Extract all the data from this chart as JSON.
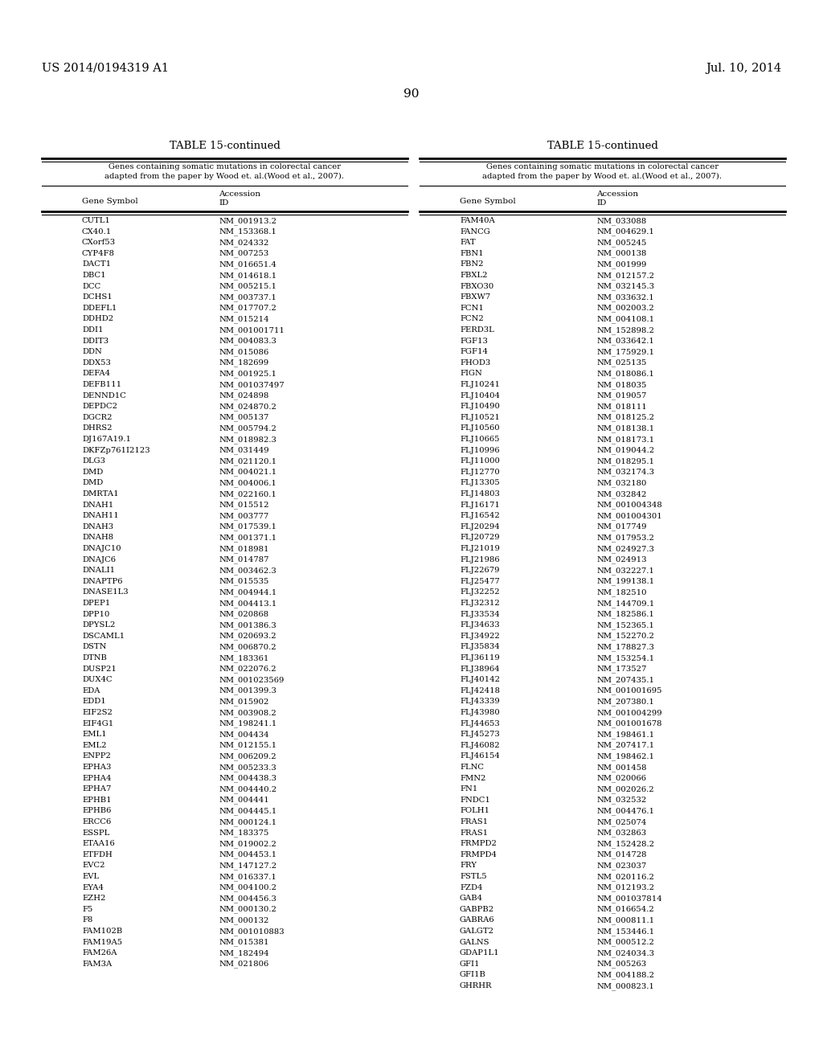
{
  "header_left": "US 2014/0194319 A1",
  "header_right": "Jul. 10, 2014",
  "page_number": "90",
  "table_title": "TABLE 15-continued",
  "table_subtitle": "Genes containing somatic mutations in colorectal cancer\nadapted from the paper by Wood et. al.(Wood et al., 2007).",
  "left_data": [
    [
      "CUTL1",
      "NM_001913.2"
    ],
    [
      "CX40.1",
      "NM_153368.1"
    ],
    [
      "CXorf53",
      "NM_024332"
    ],
    [
      "CYP4F8",
      "NM_007253"
    ],
    [
      "DACT1",
      "NM_016651.4"
    ],
    [
      "DBC1",
      "NM_014618.1"
    ],
    [
      "DCC",
      "NM_005215.1"
    ],
    [
      "DCHS1",
      "NM_003737.1"
    ],
    [
      "DDEFL1",
      "NM_017707.2"
    ],
    [
      "DDHD2",
      "NM_015214"
    ],
    [
      "DDI1",
      "NM_001001711"
    ],
    [
      "DDIT3",
      "NM_004083.3"
    ],
    [
      "DDN",
      "NM_015086"
    ],
    [
      "DDX53",
      "NM_182699"
    ],
    [
      "DEFA4",
      "NM_001925.1"
    ],
    [
      "DEFB111",
      "NM_001037497"
    ],
    [
      "DENND1C",
      "NM_024898"
    ],
    [
      "DEPDC2",
      "NM_024870.2"
    ],
    [
      "DGCR2",
      "NM_005137"
    ],
    [
      "DHRS2",
      "NM_005794.2"
    ],
    [
      "DJ167A19.1",
      "NM_018982.3"
    ],
    [
      "DKFZp761I2123",
      "NM_031449"
    ],
    [
      "DLG3",
      "NM_021120.1"
    ],
    [
      "DMD",
      "NM_004021.1"
    ],
    [
      "DMD",
      "NM_004006.1"
    ],
    [
      "DMRTA1",
      "NM_022160.1"
    ],
    [
      "DNAH1",
      "NM_015512"
    ],
    [
      "DNAH11",
      "NM_003777"
    ],
    [
      "DNAH3",
      "NM_017539.1"
    ],
    [
      "DNAH8",
      "NM_001371.1"
    ],
    [
      "DNAJC10",
      "NM_018981"
    ],
    [
      "DNAJC6",
      "NM_014787"
    ],
    [
      "DNALI1",
      "NM_003462.3"
    ],
    [
      "DNAPTP6",
      "NM_015535"
    ],
    [
      "DNASE1L3",
      "NM_004944.1"
    ],
    [
      "DPEP1",
      "NM_004413.1"
    ],
    [
      "DPP10",
      "NM_020868"
    ],
    [
      "DPYSL2",
      "NM_001386.3"
    ],
    [
      "DSCAML1",
      "NM_020693.2"
    ],
    [
      "DSTN",
      "NM_006870.2"
    ],
    [
      "DTNB",
      "NM_183361"
    ],
    [
      "DUSP21",
      "NM_022076.2"
    ],
    [
      "DUX4C",
      "NM_001023569"
    ],
    [
      "EDA",
      "NM_001399.3"
    ],
    [
      "EDD1",
      "NM_015902"
    ],
    [
      "EIF2S2",
      "NM_003908.2"
    ],
    [
      "EIF4G1",
      "NM_198241.1"
    ],
    [
      "EML1",
      "NM_004434"
    ],
    [
      "EML2",
      "NM_012155.1"
    ],
    [
      "ENPP2",
      "NM_006209.2"
    ],
    [
      "EPHA3",
      "NM_005233.3"
    ],
    [
      "EPHA4",
      "NM_004438.3"
    ],
    [
      "EPHA7",
      "NM_004440.2"
    ],
    [
      "EPHB1",
      "NM_004441"
    ],
    [
      "EPHB6",
      "NM_004445.1"
    ],
    [
      "ERCC6",
      "NM_000124.1"
    ],
    [
      "ESSPL",
      "NM_183375"
    ],
    [
      "ETAA16",
      "NM_019002.2"
    ],
    [
      "ETFDH",
      "NM_004453.1"
    ],
    [
      "EVC2",
      "NM_147127.2"
    ],
    [
      "EVL",
      "NM_016337.1"
    ],
    [
      "EYA4",
      "NM_004100.2"
    ],
    [
      "EZH2",
      "NM_004456.3"
    ],
    [
      "F5",
      "NM_000130.2"
    ],
    [
      "F8",
      "NM_000132"
    ],
    [
      "FAM102B",
      "NM_001010883"
    ],
    [
      "FAM19A5",
      "NM_015381"
    ],
    [
      "FAM26A",
      "NM_182494"
    ],
    [
      "FAM3A",
      "NM_021806"
    ]
  ],
  "right_data": [
    [
      "FAM40A",
      "NM_033088"
    ],
    [
      "FANCG",
      "NM_004629.1"
    ],
    [
      "FAT",
      "NM_005245"
    ],
    [
      "FBN1",
      "NM_000138"
    ],
    [
      "FBN2",
      "NM_001999"
    ],
    [
      "FBXL2",
      "NM_012157.2"
    ],
    [
      "FBXO30",
      "NM_032145.3"
    ],
    [
      "FBXW7",
      "NM_033632.1"
    ],
    [
      "FCN1",
      "NM_002003.2"
    ],
    [
      "FCN2",
      "NM_004108.1"
    ],
    [
      "FERD3L",
      "NM_152898.2"
    ],
    [
      "FGF13",
      "NM_033642.1"
    ],
    [
      "FGF14",
      "NM_175929.1"
    ],
    [
      "FHOD3",
      "NM_025135"
    ],
    [
      "FIGN",
      "NM_018086.1"
    ],
    [
      "FLJ10241",
      "NM_018035"
    ],
    [
      "FLJ10404",
      "NM_019057"
    ],
    [
      "FLJ10490",
      "NM_018111"
    ],
    [
      "FLJ10521",
      "NM_018125.2"
    ],
    [
      "FLJ10560",
      "NM_018138.1"
    ],
    [
      "FLJ10665",
      "NM_018173.1"
    ],
    [
      "FLJ10996",
      "NM_019044.2"
    ],
    [
      "FLJ11000",
      "NM_018295.1"
    ],
    [
      "FLJ12770",
      "NM_032174.3"
    ],
    [
      "FLJ13305",
      "NM_032180"
    ],
    [
      "FLJ14803",
      "NM_032842"
    ],
    [
      "FLJ16171",
      "NM_001004348"
    ],
    [
      "FLJ16542",
      "NM_001004301"
    ],
    [
      "FLJ20294",
      "NM_017749"
    ],
    [
      "FLJ20729",
      "NM_017953.2"
    ],
    [
      "FLJ21019",
      "NM_024927.3"
    ],
    [
      "FLJ21986",
      "NM_024913"
    ],
    [
      "FLJ22679",
      "NM_032227.1"
    ],
    [
      "FLJ25477",
      "NM_199138.1"
    ],
    [
      "FLJ32252",
      "NM_182510"
    ],
    [
      "FLJ32312",
      "NM_144709.1"
    ],
    [
      "FLJ33534",
      "NM_182586.1"
    ],
    [
      "FLJ34633",
      "NM_152365.1"
    ],
    [
      "FLJ34922",
      "NM_152270.2"
    ],
    [
      "FLJ35834",
      "NM_178827.3"
    ],
    [
      "FLJ36119",
      "NM_153254.1"
    ],
    [
      "FLJ38964",
      "NM_173527"
    ],
    [
      "FLJ40142",
      "NM_207435.1"
    ],
    [
      "FLJ42418",
      "NM_001001695"
    ],
    [
      "FLJ43339",
      "NM_207380.1"
    ],
    [
      "FLJ43980",
      "NM_001004299"
    ],
    [
      "FLJ44653",
      "NM_001001678"
    ],
    [
      "FLJ45273",
      "NM_198461.1"
    ],
    [
      "FLJ46082",
      "NM_207417.1"
    ],
    [
      "FLJ46154",
      "NM_198462.1"
    ],
    [
      "FLNC",
      "NM_001458"
    ],
    [
      "FMN2",
      "NM_020066"
    ],
    [
      "FN1",
      "NM_002026.2"
    ],
    [
      "FNDC1",
      "NM_032532"
    ],
    [
      "FOLH1",
      "NM_004476.1"
    ],
    [
      "FRAS1",
      "NM_025074"
    ],
    [
      "FRAS1",
      "NM_032863"
    ],
    [
      "FRMPD2",
      "NM_152428.2"
    ],
    [
      "FRMPD4",
      "NM_014728"
    ],
    [
      "FRY",
      "NM_023037"
    ],
    [
      "FSTL5",
      "NM_020116.2"
    ],
    [
      "FZD4",
      "NM_012193.2"
    ],
    [
      "GAB4",
      "NM_001037814"
    ],
    [
      "GABPB2",
      "NM_016654.2"
    ],
    [
      "GABRA6",
      "NM_000811.1"
    ],
    [
      "GALGT2",
      "NM_153446.1"
    ],
    [
      "GALNS",
      "NM_000512.2"
    ],
    [
      "GDAP1L1",
      "NM_024034.3"
    ],
    [
      "GFI1",
      "NM_005263"
    ],
    [
      "GFI1B",
      "NM_004188.2"
    ],
    [
      "GHRHR",
      "NM_000823.1"
    ]
  ]
}
